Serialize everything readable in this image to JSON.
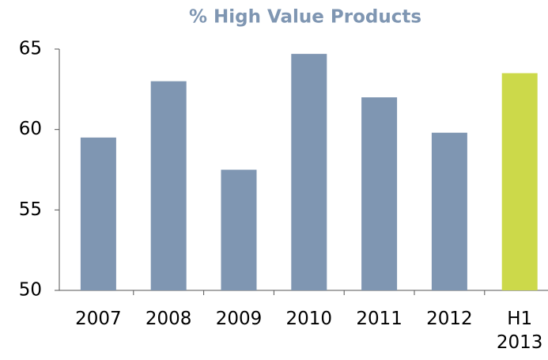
{
  "chart_data": {
    "type": "bar",
    "title": "% High Value Products",
    "categories": [
      "2007",
      "2008",
      "2009",
      "2010",
      "2011",
      "2012",
      "H1 2013"
    ],
    "values": [
      59.5,
      63.0,
      57.5,
      64.7,
      62.0,
      59.8,
      63.5
    ],
    "colors": [
      "#7f96b2",
      "#7f96b2",
      "#7f96b2",
      "#7f96b2",
      "#7f96b2",
      "#7f96b2",
      "#ccd94a"
    ],
    "ylim": [
      50,
      65
    ],
    "yticks": [
      50,
      55,
      60,
      65
    ],
    "grid": false
  }
}
